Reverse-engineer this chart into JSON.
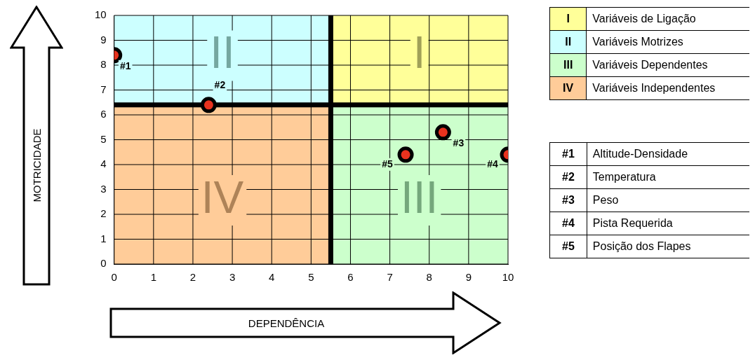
{
  "chart_data": {
    "type": "scatter",
    "xlabel": "DEPENDÊNCIA",
    "ylabel": "MOTRICIDADE",
    "xlim": [
      0,
      10
    ],
    "ylim": [
      0,
      10
    ],
    "xticks": [
      0,
      1,
      2,
      3,
      4,
      5,
      6,
      7,
      8,
      9,
      10
    ],
    "yticks": [
      0,
      1,
      2,
      3,
      4,
      5,
      6,
      7,
      8,
      9,
      10
    ],
    "grid": true,
    "marker": "circle",
    "series": [
      {
        "color": "#e8321e",
        "x": [
          0,
          2.4,
          8.35,
          10,
          7.4
        ],
        "values": [
          8.4,
          6.4,
          5.3,
          4.4,
          4.4
        ]
      }
    ],
    "ref_lines": [
      {
        "axis": "x",
        "value": 5.5,
        "color": "#000000"
      },
      {
        "axis": "y",
        "value": 6.4,
        "color": "#000000"
      }
    ],
    "annotations": [
      {
        "text": "#1",
        "x": 0,
        "y": 8.4
      },
      {
        "text": "#2",
        "x": 2.4,
        "y": 6.4
      },
      {
        "text": "#3",
        "x": 8.35,
        "y": 5.3
      },
      {
        "text": "#4",
        "x": 10,
        "y": 4.4
      },
      {
        "text": "#5",
        "x": 7.4,
        "y": 4.4
      },
      "I",
      "II",
      "III",
      "IV",
      "I",
      "Variáveis de Ligação",
      "II",
      "Variáveis Motrizes",
      "III",
      "Variáveis Dependentes",
      "IV",
      "Variáveis Independentes",
      "#1",
      "Altitude-Densidade",
      "#2",
      "Temperatura",
      "#3",
      "Peso",
      "#4",
      "Pista Requerida",
      "#5",
      "Posição dos Flapes"
    ]
  }
}
